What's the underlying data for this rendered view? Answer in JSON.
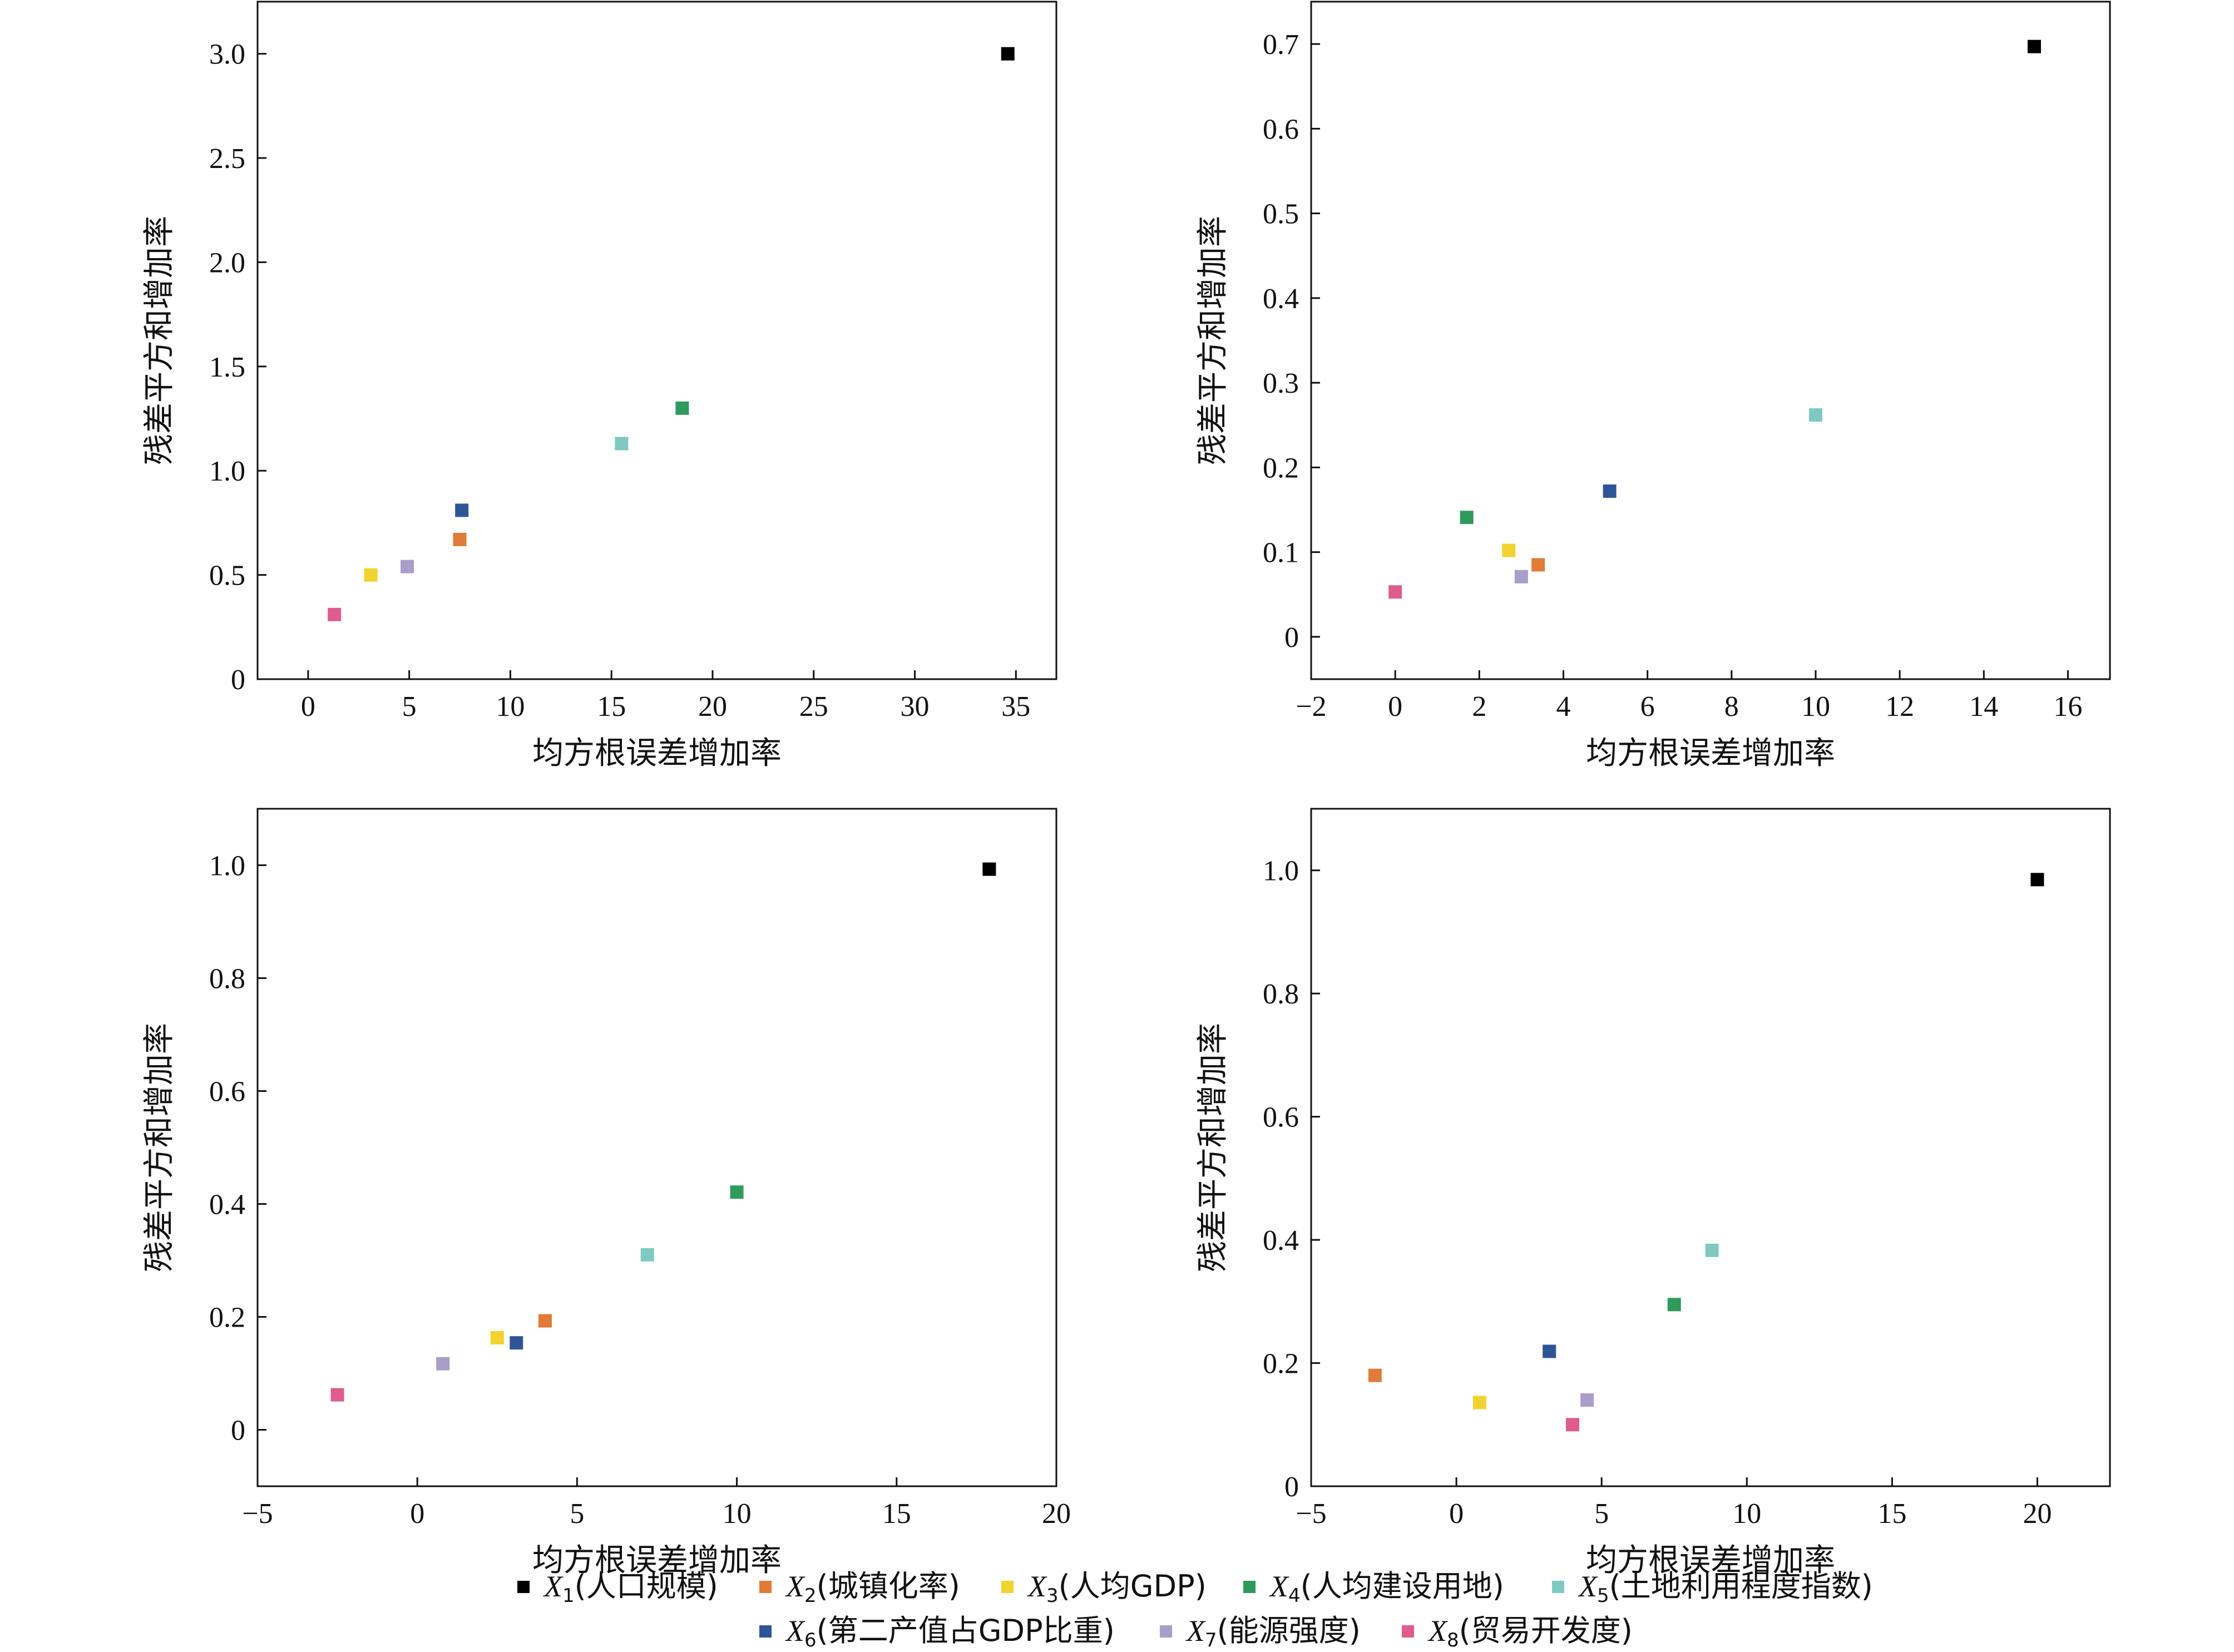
{
  "series_meta": [
    {
      "symbol": "X",
      "sub": "1",
      "label": "(人口规模)",
      "color": "#000000"
    },
    {
      "symbol": "X",
      "sub": "2",
      "label": "(城镇化率)",
      "color": "#E07B39"
    },
    {
      "symbol": "X",
      "sub": "3",
      "label": "(人均GDP)",
      "color": "#F2D22E"
    },
    {
      "symbol": "X",
      "sub": "4",
      "label": "(人均建设用地)",
      "color": "#2E9A5C"
    },
    {
      "symbol": "X",
      "sub": "5",
      "label": "(土地利用程度指数)",
      "color": "#7FC9C1"
    },
    {
      "symbol": "X",
      "sub": "6",
      "label": "(第二产值占GDP比重)",
      "color": "#2F5597"
    },
    {
      "symbol": "X",
      "sub": "7",
      "label": "(能源强度)",
      "color": "#A89EC9"
    },
    {
      "symbol": "X",
      "sub": "8",
      "label": "(贸易开发度)",
      "color": "#DE5C8E"
    }
  ],
  "chart_data": [
    {
      "type": "scatter",
      "xlabel": "均方根误差增加率",
      "ylabel": "残差平方和增加率",
      "xlim": [
        -2.5,
        37
      ],
      "ylim": [
        0,
        3.25
      ],
      "xticks": [
        0,
        5,
        10,
        15,
        20,
        25,
        30,
        35
      ],
      "xtick_labels": [
        "0",
        "5",
        "10",
        "15",
        "20",
        "25",
        "30",
        "35"
      ],
      "yticks": [
        0,
        0.5,
        1.0,
        1.5,
        2.0,
        2.5,
        3.0
      ],
      "ytick_labels": [
        "0",
        "0.5",
        "1.0",
        "1.5",
        "2.0",
        "2.5",
        "3.0"
      ],
      "points": [
        {
          "x": 34.6,
          "y": 3.0
        },
        {
          "x": 7.5,
          "y": 0.67
        },
        {
          "x": 3.1,
          "y": 0.5
        },
        {
          "x": 18.5,
          "y": 1.3
        },
        {
          "x": 15.5,
          "y": 1.13
        },
        {
          "x": 7.6,
          "y": 0.81
        },
        {
          "x": 4.9,
          "y": 0.54
        },
        {
          "x": 1.3,
          "y": 0.31
        }
      ]
    },
    {
      "type": "scatter",
      "xlabel": "均方根误差增加率",
      "ylabel": "残差平方和增加率",
      "xlim": [
        -2,
        17
      ],
      "ylim": [
        -0.05,
        0.75
      ],
      "xticks": [
        -2,
        0,
        2,
        4,
        6,
        8,
        10,
        12,
        14,
        16
      ],
      "xtick_labels": [
        "−2",
        "0",
        "2",
        "4",
        "6",
        "8",
        "10",
        "12",
        "14",
        "16"
      ],
      "yticks": [
        0,
        0.1,
        0.2,
        0.3,
        0.4,
        0.5,
        0.6,
        0.7
      ],
      "ytick_labels": [
        "0",
        "0.1",
        "0.2",
        "0.3",
        "0.4",
        "0.5",
        "0.6",
        "0.7"
      ],
      "points": [
        {
          "x": 15.2,
          "y": 0.697
        },
        {
          "x": 3.4,
          "y": 0.085
        },
        {
          "x": 2.7,
          "y": 0.102
        },
        {
          "x": 1.7,
          "y": 0.141
        },
        {
          "x": 10.0,
          "y": 0.262
        },
        {
          "x": 5.1,
          "y": 0.172
        },
        {
          "x": 3.0,
          "y": 0.071
        },
        {
          "x": 0.0,
          "y": 0.053
        }
      ]
    },
    {
      "type": "scatter",
      "xlabel": "均方根误差增加率",
      "ylabel": "残差平方和增加率",
      "xlim": [
        -5,
        20
      ],
      "ylim": [
        -0.1,
        1.1
      ],
      "xticks": [
        -5,
        0,
        5,
        10,
        15,
        20
      ],
      "xtick_labels": [
        "−5",
        "0",
        "5",
        "10",
        "15",
        "20"
      ],
      "yticks": [
        0,
        0.2,
        0.4,
        0.6,
        0.8,
        1.0
      ],
      "ytick_labels": [
        "0",
        "0.2",
        "0.4",
        "0.6",
        "0.8",
        "1.0"
      ],
      "points": [
        {
          "x": 17.9,
          "y": 0.993
        },
        {
          "x": 4.0,
          "y": 0.193
        },
        {
          "x": 2.5,
          "y": 0.163
        },
        {
          "x": 10.0,
          "y": 0.421
        },
        {
          "x": 7.2,
          "y": 0.31
        },
        {
          "x": 3.1,
          "y": 0.154
        },
        {
          "x": 0.8,
          "y": 0.117
        },
        {
          "x": -2.5,
          "y": 0.062
        }
      ]
    },
    {
      "type": "scatter",
      "xlabel": "均方根误差增加率",
      "ylabel": "残差平方和增加率",
      "xlim": [
        -5,
        22.5
      ],
      "ylim": [
        0,
        1.1
      ],
      "xticks": [
        -5,
        0,
        5,
        10,
        15,
        20
      ],
      "xtick_labels": [
        "−5",
        "0",
        "5",
        "10",
        "15",
        "20"
      ],
      "yticks": [
        0,
        0.2,
        0.4,
        0.6,
        0.8,
        1.0
      ],
      "ytick_labels": [
        "0",
        "0.2",
        "0.4",
        "0.6",
        "0.8",
        "1.0"
      ],
      "points": [
        {
          "x": 20.0,
          "y": 0.985
        },
        {
          "x": -2.8,
          "y": 0.18
        },
        {
          "x": 0.8,
          "y": 0.136
        },
        {
          "x": 7.5,
          "y": 0.295
        },
        {
          "x": 8.8,
          "y": 0.383
        },
        {
          "x": 3.2,
          "y": 0.219
        },
        {
          "x": 4.5,
          "y": 0.14
        },
        {
          "x": 4.0,
          "y": 0.1
        }
      ]
    }
  ]
}
